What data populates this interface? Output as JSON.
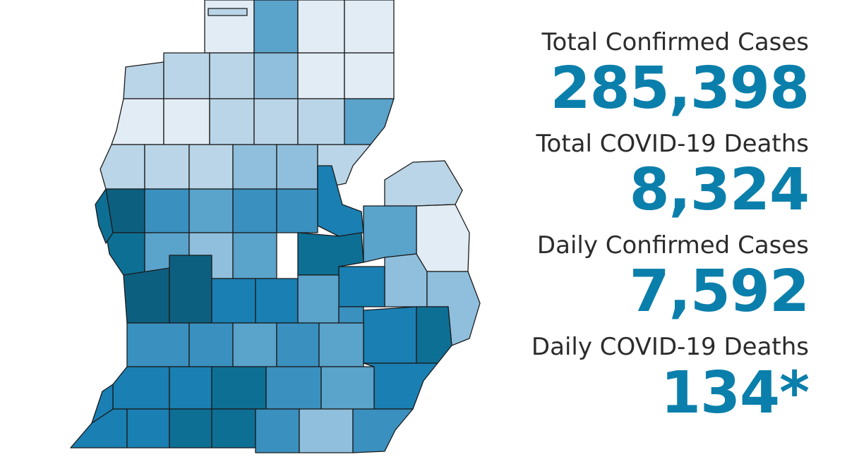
{
  "colors": {
    "accent": "#0b7fab",
    "label": "#2b2b2b",
    "scale": [
      "#e2ecf4",
      "#bad5e7",
      "#8fbfdc",
      "#5aa3cb",
      "#3a90bf",
      "#1a7fb2",
      "#0e6f95",
      "#0d5f80"
    ]
  },
  "stats": [
    {
      "label": "Total Confirmed Cases",
      "value": "285,398"
    },
    {
      "label": "Total COVID-19 Deaths",
      "value": "8,324"
    },
    {
      "label": "Daily Confirmed Cases",
      "value": "7,592"
    },
    {
      "label": "Daily COVID-19 Deaths",
      "value": "134*"
    }
  ],
  "map": {
    "region": "Michigan lower peninsula counties",
    "shading_levels": [
      0,
      1,
      2,
      3,
      4,
      5,
      6,
      7
    ]
  }
}
